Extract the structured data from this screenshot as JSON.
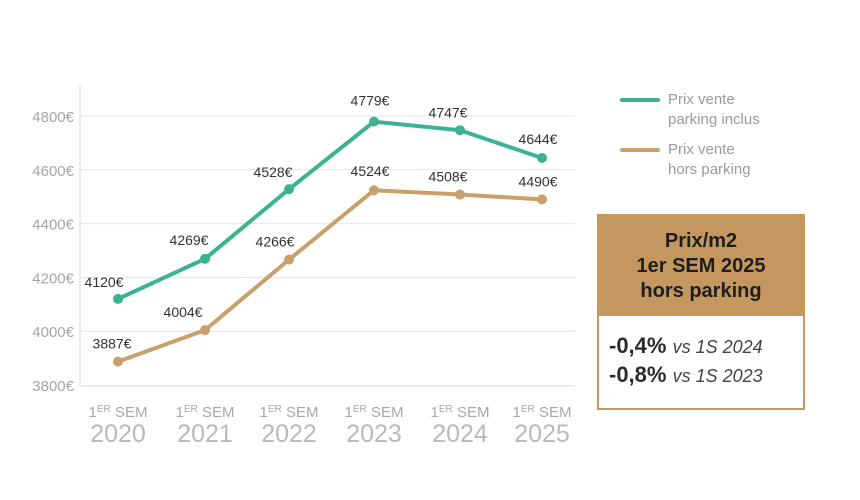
{
  "chart_data": {
    "type": "line",
    "categories": [
      {
        "line1_small": "1",
        "line1_sup": "ER",
        "line1_rest": " SEM",
        "year": "2020"
      },
      {
        "line1_small": "1",
        "line1_sup": "ER",
        "line1_rest": " SEM",
        "year": "2021"
      },
      {
        "line1_small": "1",
        "line1_sup": "ER",
        "line1_rest": " SEM",
        "year": "2022"
      },
      {
        "line1_small": "1",
        "line1_sup": "ER",
        "line1_rest": " SEM",
        "year": "2023"
      },
      {
        "line1_small": "1",
        "line1_sup": "ER",
        "line1_rest": " SEM",
        "year": "2024"
      },
      {
        "line1_small": "1",
        "line1_sup": "ER",
        "line1_rest": " SEM",
        "year": "2025"
      }
    ],
    "series": [
      {
        "name": "Prix vente parking inclus",
        "name_lines": [
          "Prix vente",
          "parking inclus"
        ],
        "color": "#3bb391",
        "values": [
          4120,
          4269,
          4528,
          4779,
          4747,
          4644
        ],
        "labels": [
          "4120€",
          "4269€",
          "4528€",
          "4779€",
          "4747€",
          "4644€"
        ]
      },
      {
        "name": "Prix vente hors parking",
        "name_lines": [
          "Prix vente",
          "hors parking"
        ],
        "color": "#c9a06a",
        "values": [
          3887,
          4004,
          4266,
          4524,
          4508,
          4490
        ],
        "labels": [
          "3887€",
          "4004€",
          "4266€",
          "4524€",
          "4508€",
          "4490€"
        ]
      }
    ],
    "yticks": [
      3800,
      4000,
      4200,
      4400,
      4600,
      4800
    ],
    "ytick_labels": [
      "3800€",
      "4000€",
      "4200€",
      "4400€",
      "4600€",
      "4800€"
    ],
    "ylim": [
      3800,
      4900
    ],
    "grid": true,
    "legend_position": "top-right"
  },
  "summary": {
    "title_lines": [
      "Prix/m2",
      "1er SEM 2025",
      "hors parking"
    ],
    "rows": [
      {
        "pct": "-0,4%",
        "vs": "vs 1S 2024"
      },
      {
        "pct": "-0,8%",
        "vs": "vs 1S 2023"
      }
    ],
    "header_color": "#c4975e"
  }
}
